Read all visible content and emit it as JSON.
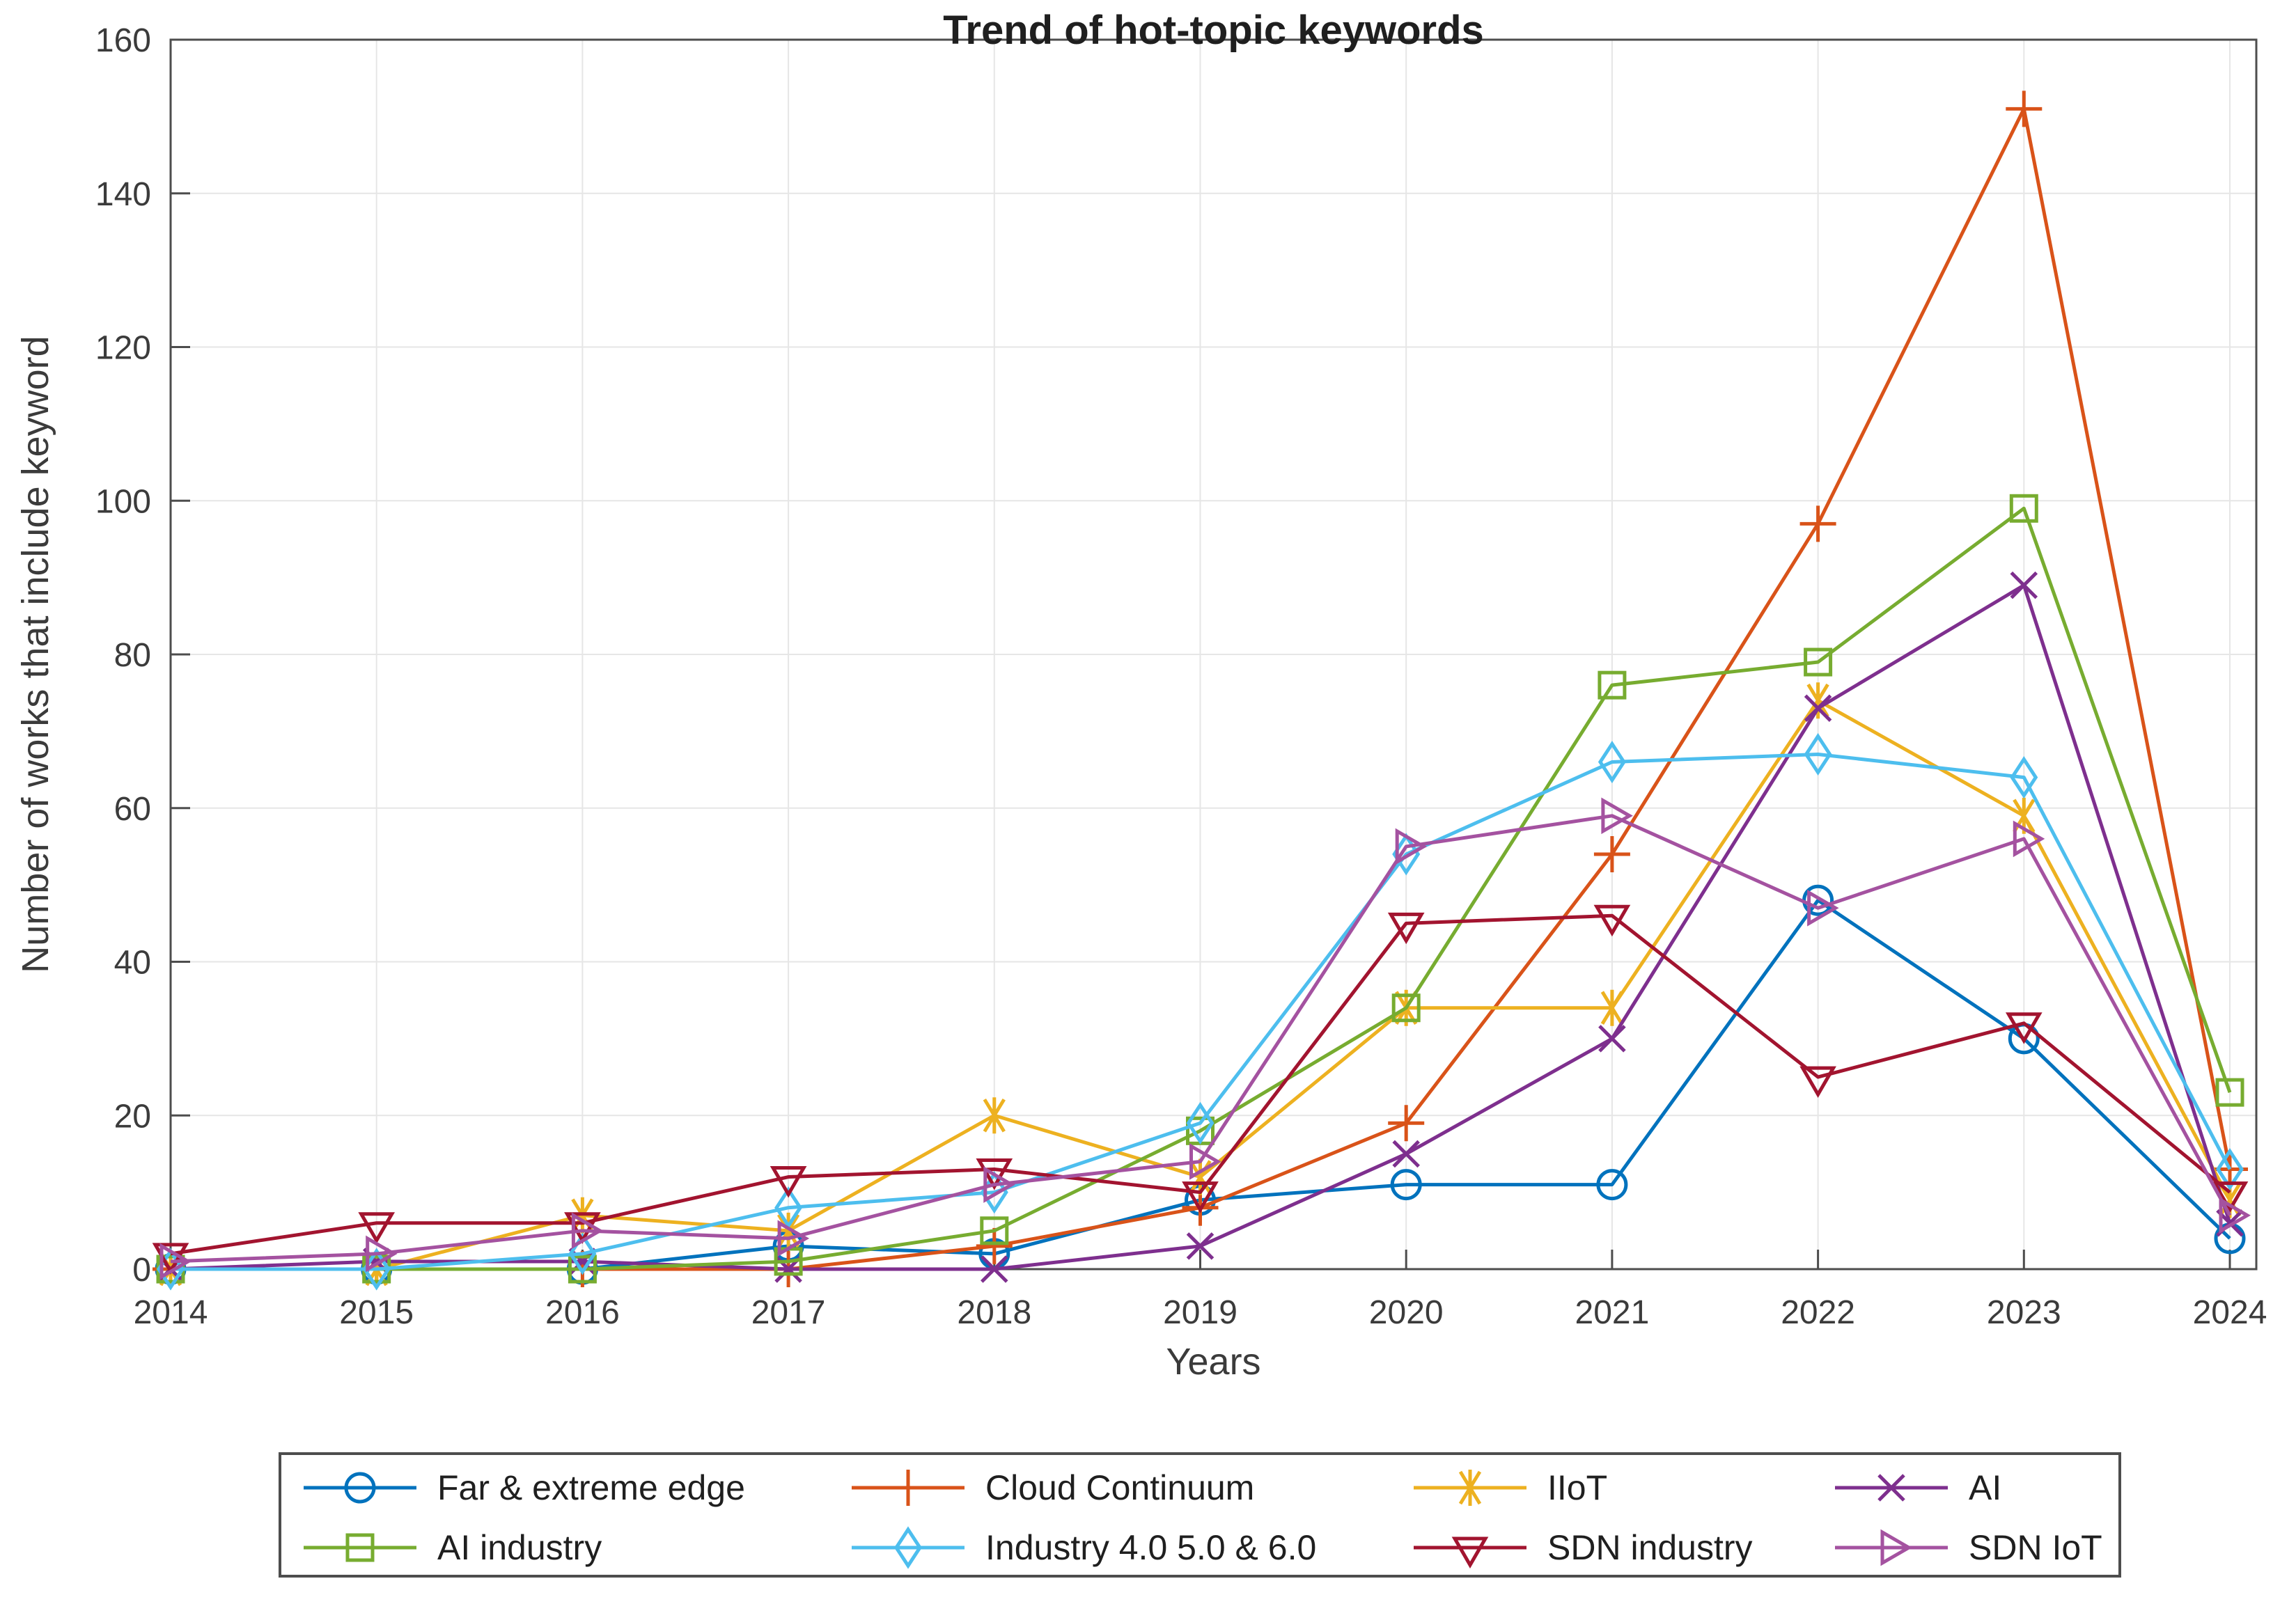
{
  "figure": {
    "title": "Trend of hot-topic keywords",
    "xlabel": "Years",
    "ylabel": "Number of works that include keyword"
  },
  "style": {
    "background": "#ffffff",
    "grid_color": "#e6e6e6",
    "frame_color": "#4d4d4d",
    "tick_text_color": "#3b3b3b",
    "title_color": "#1f1f1f"
  },
  "chart_data": {
    "type": "line",
    "title": "Trend of hot-topic keywords",
    "xlabel": "Years",
    "ylabel": "Number of works that include keyword",
    "x": [
      2014,
      2015,
      2016,
      2017,
      2018,
      2019,
      2020,
      2021,
      2022,
      2023,
      2024
    ],
    "ylim": [
      0,
      160
    ],
    "ytick_step": 20,
    "yticks": [
      0,
      20,
      40,
      60,
      80,
      100,
      120,
      140,
      160
    ],
    "grid": true,
    "legend_position": "below-plot, boxed, 4 columns x 2 rows",
    "series": [
      {
        "name": "Far & extreme edge",
        "marker": "circle",
        "color": "#0072BD",
        "values": [
          0,
          0,
          0,
          3,
          2,
          9,
          11,
          11,
          48,
          30,
          4
        ]
      },
      {
        "name": "Cloud Continuum",
        "marker": "plus",
        "color": "#D95319",
        "values": [
          0,
          0,
          0,
          0,
          3,
          8,
          19,
          54,
          97,
          151,
          13
        ]
      },
      {
        "name": "IIoT",
        "marker": "asterisk",
        "color": "#EDB120",
        "values": [
          0,
          0,
          7,
          5,
          20,
          12,
          34,
          34,
          74,
          59,
          9
        ]
      },
      {
        "name": "AI",
        "marker": "x",
        "color": "#7E2F8E",
        "values": [
          0,
          1,
          1,
          0,
          0,
          3,
          15,
          30,
          73,
          89,
          6
        ]
      },
      {
        "name": "AI industry",
        "marker": "square",
        "color": "#77AC30",
        "values": [
          0,
          0,
          0,
          1,
          5,
          18,
          34,
          76,
          79,
          99,
          23
        ]
      },
      {
        "name": "Industry 4.0 5.0 & 6.0",
        "marker": "diamond",
        "color": "#4DBEEE",
        "values": [
          0,
          0,
          2,
          8,
          10,
          19,
          54,
          66,
          67,
          64,
          13
        ]
      },
      {
        "name": "SDN industry",
        "marker": "triangle-down",
        "color": "#A2142F",
        "values": [
          2,
          6,
          6,
          12,
          13,
          10,
          45,
          46,
          25,
          32,
          10
        ]
      },
      {
        "name": "SDN IoT",
        "marker": "triangle-right",
        "color": "#A452A0",
        "values": [
          1,
          2,
          5,
          4,
          11,
          14,
          55,
          59,
          47,
          56,
          7
        ]
      }
    ],
    "legend_columns": [
      [
        0,
        4
      ],
      [
        1,
        5
      ],
      [
        2,
        6
      ],
      [
        3,
        7
      ]
    ]
  }
}
